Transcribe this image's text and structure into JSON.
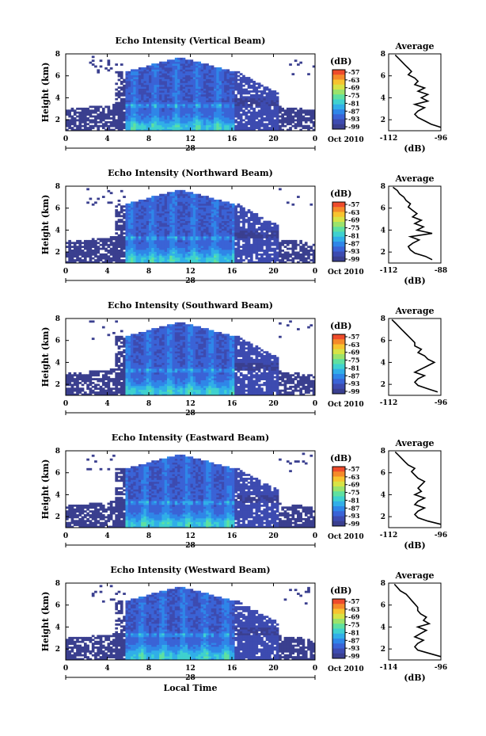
{
  "chart_data": [
    {
      "type": "heatmap",
      "title": "Echo Intensity (Vertical Beam)",
      "ylabel": "Height (km)",
      "xlabel": "",
      "date_label": "28",
      "month_label": "Oct 2010",
      "xlim": [
        0,
        24
      ],
      "ylim": [
        1,
        8
      ],
      "xticks": [
        "0",
        "4",
        "8",
        "12",
        "16",
        "20",
        "0"
      ],
      "yticks": [
        "2",
        "4",
        "6",
        "8"
      ],
      "colorbar": {
        "label": "(dB)",
        "ticks": [
          "-57",
          "-63",
          "-69",
          "-75",
          "-81",
          "-87",
          "-93",
          "-99"
        ]
      },
      "profile": {
        "title": "Average",
        "xlabel": "(dB)",
        "xticks": [
          "-112",
          "-96"
        ],
        "xlim": [
          -112,
          -96
        ],
        "ylim": [
          1,
          8
        ],
        "yticks": [
          "2",
          "4",
          "6",
          "8"
        ],
        "heights": [
          1.3,
          1.6,
          1.9,
          2.2,
          2.5,
          2.8,
          3.1,
          3.4,
          3.7,
          4.0,
          4.3,
          4.6,
          4.9,
          5.2,
          5.5,
          5.8,
          6.1,
          6.4,
          6.7,
          7.0,
          7.3,
          7.6,
          7.9
        ],
        "values": [
          -96,
          -99,
          -101,
          -103,
          -104,
          -103,
          -101,
          -104,
          -100,
          -102,
          -100,
          -103,
          -101,
          -104,
          -103,
          -104,
          -106,
          -105,
          -106,
          -107,
          -108,
          -109,
          -110
        ]
      }
    },
    {
      "type": "heatmap",
      "title": "Echo Intensity (Northward Beam)",
      "ylabel": "Height (km)",
      "xlabel": "",
      "date_label": "28",
      "month_label": "Oct 2010",
      "xlim": [
        0,
        24
      ],
      "ylim": [
        1,
        8
      ],
      "xticks": [
        "0",
        "4",
        "8",
        "12",
        "16",
        "20",
        "0"
      ],
      "yticks": [
        "2",
        "4",
        "6",
        "8"
      ],
      "colorbar": {
        "label": "(dB)",
        "ticks": [
          "-57",
          "-63",
          "-69",
          "-75",
          "-81",
          "-87",
          "-93",
          "-99"
        ]
      },
      "profile": {
        "title": "Average",
        "xlabel": "(dB)",
        "xticks": [
          "-112",
          "-88"
        ],
        "xlim": [
          -112,
          -88
        ],
        "ylim": [
          1,
          8
        ],
        "yticks": [
          "2",
          "4",
          "6",
          "8"
        ],
        "heights": [
          1.3,
          1.6,
          1.9,
          2.2,
          2.5,
          2.8,
          3.1,
          3.4,
          3.7,
          4.0,
          4.3,
          4.6,
          4.9,
          5.2,
          5.5,
          5.8,
          6.1,
          6.4,
          6.7,
          7.0,
          7.3,
          7.6,
          7.9
        ],
        "values": [
          -92,
          -95,
          -100,
          -102,
          -103,
          -101,
          -98,
          -102,
          -92,
          -99,
          -96,
          -100,
          -97,
          -101,
          -99,
          -101,
          -103,
          -102,
          -104,
          -105,
          -107,
          -108,
          -110
        ]
      }
    },
    {
      "type": "heatmap",
      "title": "Echo Intensity (Southward Beam)",
      "ylabel": "Height (km)",
      "xlabel": "",
      "date_label": "28",
      "month_label": "Oct 2010",
      "xlim": [
        0,
        24
      ],
      "ylim": [
        1,
        8
      ],
      "xticks": [
        "0",
        "4",
        "8",
        "12",
        "16",
        "20",
        "0"
      ],
      "yticks": [
        "2",
        "4",
        "6",
        "8"
      ],
      "colorbar": {
        "label": "(dB)",
        "ticks": [
          "-57",
          "-63",
          "-69",
          "-75",
          "-81",
          "-87",
          "-93",
          "-99"
        ]
      },
      "profile": {
        "title": "Average",
        "xlabel": "",
        "xticks": [
          "-112",
          "-96"
        ],
        "xlim": [
          -112,
          -96
        ],
        "ylim": [
          1,
          8
        ],
        "yticks": [
          "2",
          "4",
          "6",
          "8"
        ],
        "heights": [
          1.3,
          1.6,
          1.9,
          2.2,
          2.5,
          2.8,
          3.1,
          3.4,
          3.7,
          4.0,
          4.3,
          4.6,
          4.9,
          5.2,
          5.5,
          5.8,
          6.1,
          6.4,
          6.7,
          7.0,
          7.3,
          7.6,
          7.9
        ],
        "values": [
          -97,
          -100,
          -103,
          -104,
          -103,
          -101,
          -104,
          -102,
          -100,
          -98,
          -100,
          -101,
          -103,
          -102,
          -104,
          -104,
          -105,
          -106,
          -107,
          -108,
          -109,
          -110,
          -111
        ]
      }
    },
    {
      "type": "heatmap",
      "title": "Echo Intensity (Eastward Beam)",
      "ylabel": "Height (km)",
      "xlabel": "",
      "date_label": "28",
      "month_label": "Oct 2010",
      "xlim": [
        0,
        24
      ],
      "ylim": [
        1,
        8
      ],
      "xticks": [
        "0",
        "4",
        "8",
        "12",
        "16",
        "20",
        "0"
      ],
      "yticks": [
        "2",
        "4",
        "6",
        "8"
      ],
      "colorbar": {
        "label": "(dB)",
        "ticks": [
          "-57",
          "-63",
          "-69",
          "-75",
          "-81",
          "-87",
          "-93",
          "-99"
        ]
      },
      "profile": {
        "title": "Average",
        "xlabel": "(dB)",
        "xticks": [
          "-112",
          "-96"
        ],
        "xlim": [
          -112,
          -96
        ],
        "ylim": [
          1,
          8
        ],
        "yticks": [
          "2",
          "4",
          "6",
          "8"
        ],
        "heights": [
          1.3,
          1.6,
          1.9,
          2.2,
          2.5,
          2.8,
          3.1,
          3.4,
          3.7,
          4.0,
          4.3,
          4.6,
          4.9,
          5.2,
          5.5,
          5.8,
          6.1,
          6.4,
          6.7,
          7.0,
          7.3,
          7.6,
          7.9
        ],
        "values": [
          -96,
          -100,
          -103,
          -104,
          -103,
          -101,
          -104,
          -103,
          -101,
          -104,
          -102,
          -103,
          -102,
          -101,
          -103,
          -104,
          -105,
          -104,
          -106,
          -107,
          -108,
          -109,
          -110
        ]
      }
    },
    {
      "type": "heatmap",
      "title": "Echo Intensity (Westward Beam)",
      "ylabel": "Height (km)",
      "xlabel": "Local Time",
      "date_label": "28",
      "month_label": "Oct 2010",
      "xlim": [
        0,
        24
      ],
      "ylim": [
        1,
        8
      ],
      "xticks": [
        "0",
        "4",
        "8",
        "12",
        "16",
        "20",
        "0"
      ],
      "yticks": [
        "2",
        "4",
        "6",
        "8"
      ],
      "colorbar": {
        "label": "(dB)",
        "ticks": [
          "-57",
          "-63",
          "-69",
          "-75",
          "-81",
          "-87",
          "-93",
          "-99"
        ]
      },
      "profile": {
        "title": "Average",
        "xlabel": "(dB)",
        "xticks": [
          "-114",
          "-96"
        ],
        "xlim": [
          -114,
          -96
        ],
        "ylim": [
          1,
          8
        ],
        "yticks": [
          "2",
          "4",
          "6",
          "8"
        ],
        "heights": [
          1.3,
          1.6,
          1.9,
          2.2,
          2.5,
          2.8,
          3.1,
          3.4,
          3.7,
          4.0,
          4.3,
          4.6,
          4.9,
          5.2,
          5.5,
          5.8,
          6.1,
          6.4,
          6.7,
          7.0,
          7.3,
          7.6,
          7.9
        ],
        "values": [
          -96,
          -100,
          -104,
          -105,
          -104,
          -102,
          -105,
          -103,
          -101,
          -104,
          -100,
          -102,
          -101,
          -103,
          -104,
          -104,
          -105,
          -106,
          -107,
          -108,
          -110,
          -111,
          -112
        ]
      }
    }
  ],
  "colors": {
    "background_fill": "#3a3f8f",
    "palette": [
      "#3a3f8f",
      "#3d4bb0",
      "#3a63d6",
      "#2f86e8",
      "#31aee8",
      "#3fd1cf",
      "#5fe0a0",
      "#9be36b",
      "#d7e346",
      "#f7c32f",
      "#f58a2a",
      "#ee4b2b"
    ]
  }
}
